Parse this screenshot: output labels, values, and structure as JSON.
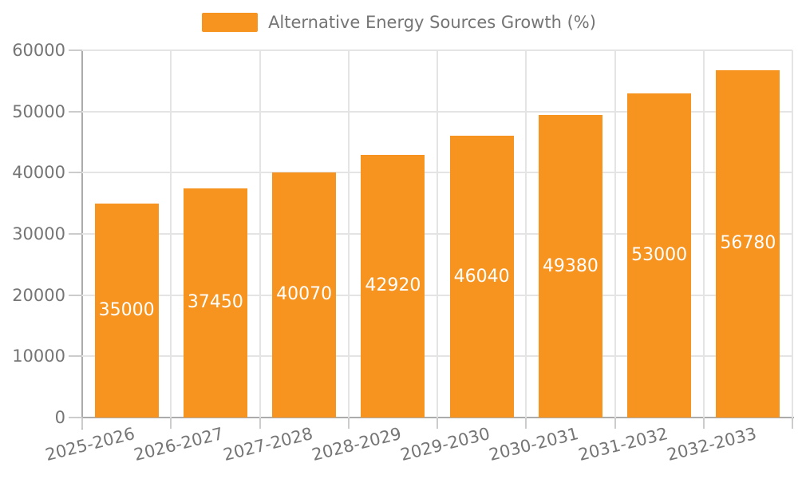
{
  "chart_data": {
    "type": "bar",
    "title": "",
    "legend": "Alternative Energy Sources Growth (%)",
    "legend_position": "top-center",
    "categories": [
      "2025-2026",
      "2026-2027",
      "2027-2028",
      "2028-2029",
      "2029-2030",
      "2030-2031",
      "2031-2032",
      "2032-2033"
    ],
    "values": [
      35000,
      37450,
      40070,
      42920,
      46040,
      49380,
      53000,
      56780
    ],
    "xlabel": "",
    "ylabel": "",
    "ylim": [
      0,
      60000
    ],
    "yticks": [
      0,
      10000,
      20000,
      30000,
      40000,
      50000,
      60000
    ],
    "grid": true,
    "bar_color": "#f79420",
    "value_label_color": "#ffffff",
    "axis_text_color": "#757575",
    "gridline_color": "#e4e4e4",
    "axis_line_color": "#ababab",
    "x_label_rotation_deg": -14
  }
}
